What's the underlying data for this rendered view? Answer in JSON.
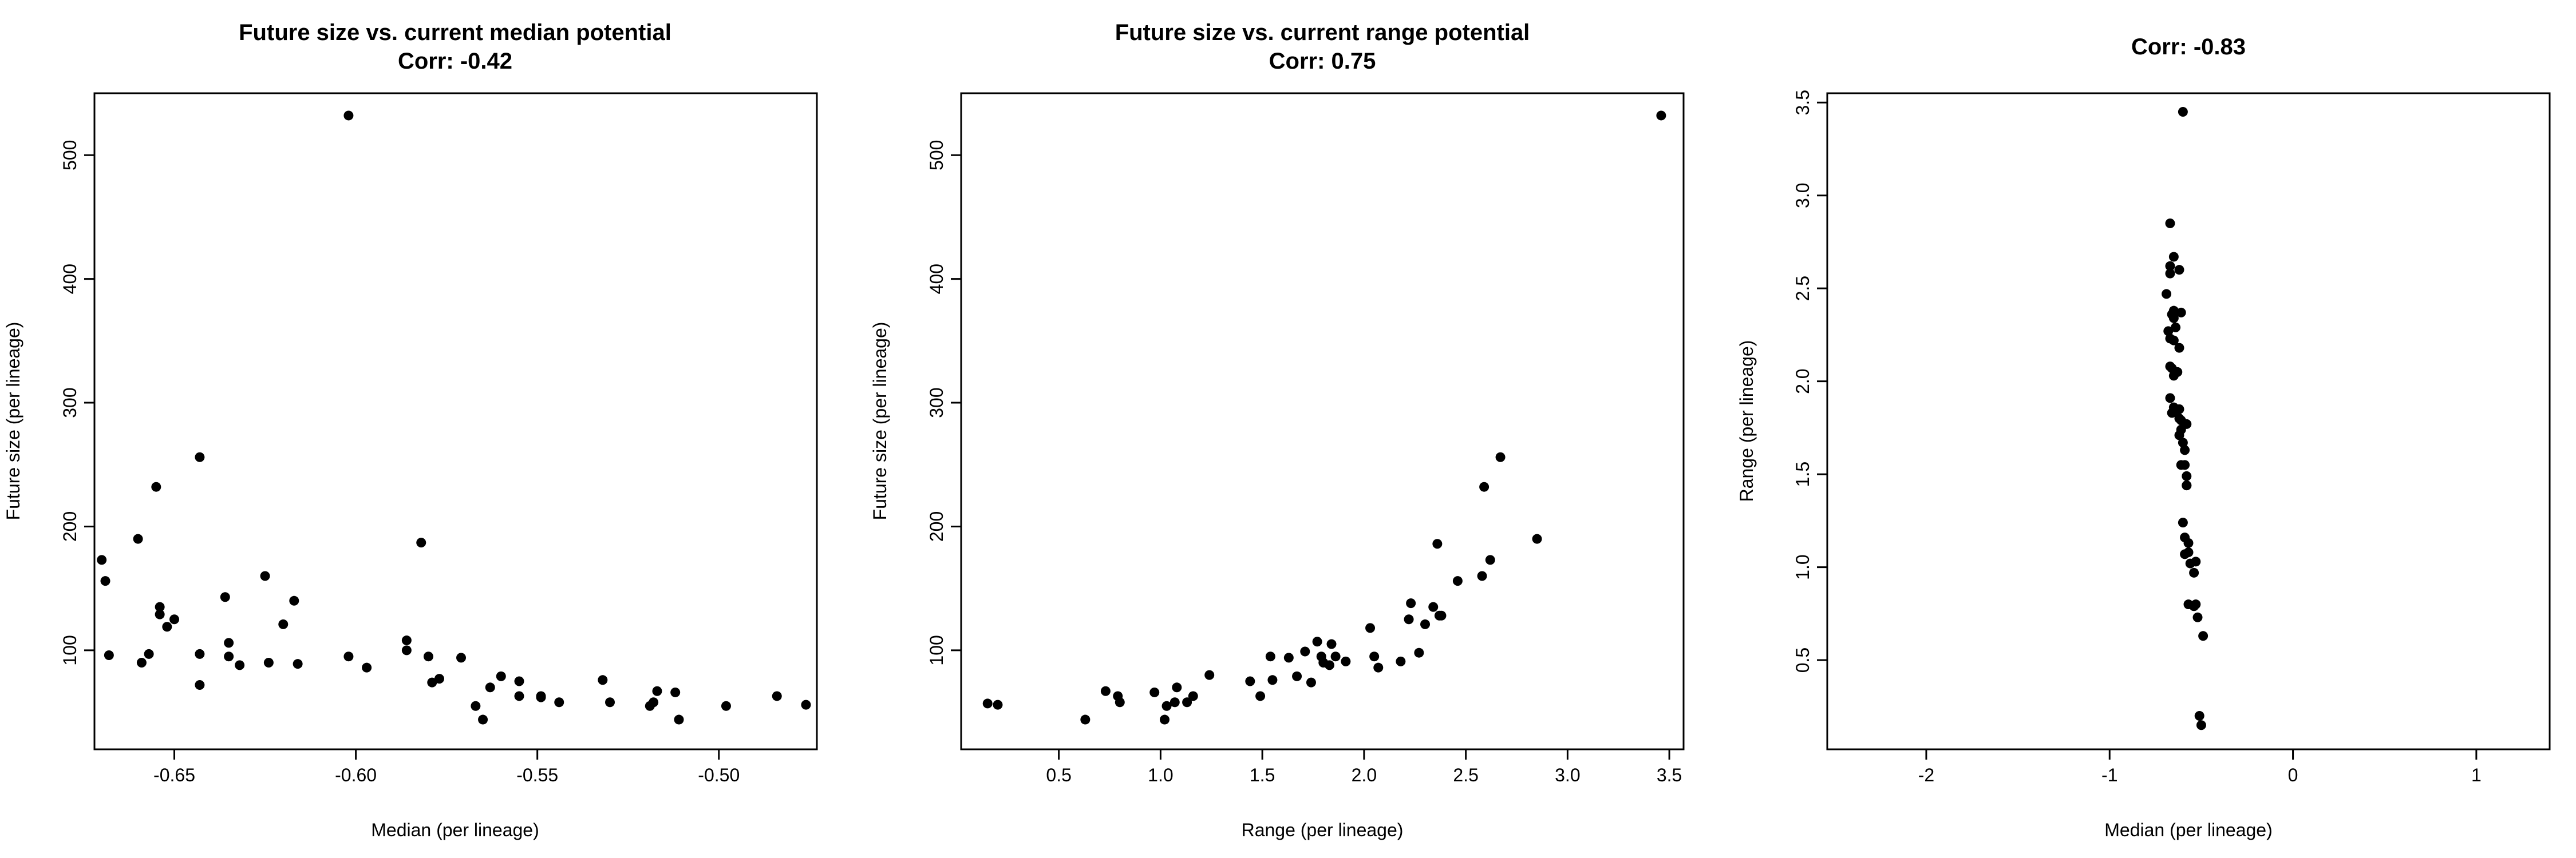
{
  "chart_data": [
    {
      "type": "scatter",
      "title": "Future size vs. current median potential",
      "subtitle": "Corr: -0.42",
      "xlabel": "Median (per lineage)",
      "ylabel": "Future size (per lineage)",
      "xlim": [
        -0.672,
        -0.473
      ],
      "ylim": [
        20,
        550
      ],
      "xticks": [
        -0.65,
        -0.6,
        -0.55,
        -0.5
      ],
      "xtick_labels": [
        "-0.65",
        "-0.60",
        "-0.55",
        "-0.50"
      ],
      "yticks": [
        100,
        200,
        300,
        400,
        500
      ],
      "ytick_labels": [
        "100",
        "200",
        "300",
        "400",
        "500"
      ],
      "grid": false,
      "x": [
        -0.67,
        -0.669,
        -0.668,
        -0.66,
        -0.659,
        -0.657,
        -0.655,
        -0.654,
        -0.654,
        -0.652,
        -0.65,
        -0.643,
        -0.643,
        -0.643,
        -0.636,
        -0.635,
        -0.635,
        -0.632,
        -0.625,
        -0.624,
        -0.62,
        -0.617,
        -0.616,
        -0.602,
        -0.602,
        -0.597,
        -0.586,
        -0.586,
        -0.582,
        -0.58,
        -0.579,
        -0.577,
        -0.571,
        -0.567,
        -0.565,
        -0.563,
        -0.56,
        -0.555,
        -0.555,
        -0.549,
        -0.549,
        -0.544,
        -0.532,
        -0.53,
        -0.519,
        -0.518,
        -0.517,
        -0.512,
        -0.511,
        -0.498,
        -0.484,
        -0.476
      ],
      "y": [
        173,
        156,
        96,
        190,
        90,
        97,
        232,
        135,
        129,
        119,
        125,
        256,
        97,
        72,
        143,
        106,
        95,
        88,
        160,
        90,
        121,
        140,
        89,
        532,
        95,
        86,
        108,
        100,
        187,
        95,
        74,
        77,
        94,
        55,
        44,
        70,
        79,
        75,
        63,
        63,
        62,
        58,
        76,
        58,
        55,
        58,
        67,
        66,
        44,
        55,
        63,
        56
      ]
    },
    {
      "type": "scatter",
      "title": "Future size vs. current range potential",
      "subtitle": "Corr: 0.75",
      "xlabel": "Range (per lineage)",
      "ylabel": "Future size (per lineage)",
      "xlim": [
        0.02,
        3.57
      ],
      "ylim": [
        20,
        550
      ],
      "xticks": [
        0.5,
        1.0,
        1.5,
        2.0,
        2.5,
        3.0,
        3.5
      ],
      "xtick_labels": [
        "0.5",
        "1.0",
        "1.5",
        "2.0",
        "2.5",
        "3.0",
        "3.5"
      ],
      "yticks": [
        100,
        200,
        300,
        400,
        500
      ],
      "ytick_labels": [
        "100",
        "200",
        "300",
        "400",
        "500"
      ],
      "grid": false,
      "x": [
        0.15,
        0.2,
        0.63,
        0.73,
        0.79,
        0.8,
        0.97,
        1.02,
        1.03,
        1.07,
        1.08,
        1.13,
        1.16,
        1.24,
        1.44,
        1.49,
        1.54,
        1.55,
        1.63,
        1.67,
        1.71,
        1.74,
        1.77,
        1.79,
        1.8,
        1.83,
        1.84,
        1.86,
        1.91,
        2.03,
        2.05,
        2.07,
        2.18,
        2.22,
        2.23,
        2.27,
        2.3,
        2.34,
        2.36,
        2.37,
        2.38,
        2.46,
        2.58,
        2.59,
        2.62,
        2.67,
        2.85,
        3.46
      ],
      "y": [
        57,
        56,
        44,
        67,
        63,
        58,
        66,
        44,
        55,
        58,
        70,
        58,
        63,
        80,
        75,
        63,
        95,
        76,
        94,
        79,
        99,
        74,
        107,
        95,
        90,
        88,
        105,
        95,
        91,
        118,
        95,
        86,
        91,
        125,
        138,
        98,
        121,
        135,
        186,
        128,
        128,
        156,
        160,
        232,
        173,
        256,
        190,
        532
      ]
    },
    {
      "type": "scatter",
      "title": "Corr: -0.83",
      "xlabel": "Median (per lineage)",
      "ylabel": "Range (per lineage)",
      "xlim": [
        -2.54,
        1.4
      ],
      "ylim": [
        0.02,
        3.55
      ],
      "xticks": [
        -2,
        -1,
        0,
        1
      ],
      "xtick_labels": [
        "-2",
        "-1",
        "0",
        "1"
      ],
      "yticks": [
        0.5,
        1.0,
        1.5,
        2.0,
        2.5,
        3.0,
        3.5
      ],
      "ytick_labels": [
        "0.5",
        "1.0",
        "1.5",
        "2.0",
        "2.5",
        "3.0",
        "3.5"
      ],
      "grid": false,
      "x": [
        -0.6,
        -0.67,
        -0.65,
        -0.67,
        -0.62,
        -0.67,
        -0.69,
        -0.65,
        -0.61,
        -0.66,
        -0.65,
        -0.64,
        -0.68,
        -0.67,
        -0.65,
        -0.62,
        -0.67,
        -0.66,
        -0.63,
        -0.65,
        -0.67,
        -0.65,
        -0.62,
        -0.65,
        -0.66,
        -0.62,
        -0.61,
        -0.58,
        -0.61,
        -0.62,
        -0.6,
        -0.59,
        -0.61,
        -0.59,
        -0.58,
        -0.58,
        -0.58,
        -0.6,
        -0.59,
        -0.57,
        -0.57,
        -0.59,
        -0.53,
        -0.56,
        -0.54,
        -0.57,
        -0.53,
        -0.54,
        -0.52,
        -0.49,
        -0.51,
        -0.5
      ],
      "y": [
        3.45,
        2.85,
        2.67,
        2.62,
        2.6,
        2.58,
        2.47,
        2.38,
        2.37,
        2.36,
        2.34,
        2.29,
        2.27,
        2.23,
        2.22,
        2.18,
        2.08,
        2.07,
        2.05,
        2.03,
        1.91,
        1.86,
        1.85,
        1.84,
        1.83,
        1.8,
        1.79,
        1.77,
        1.74,
        1.71,
        1.67,
        1.63,
        1.55,
        1.55,
        1.49,
        1.44,
        1.44,
        1.24,
        1.16,
        1.13,
        1.08,
        1.07,
        1.03,
        1.02,
        0.97,
        0.8,
        0.8,
        0.79,
        0.73,
        0.63,
        0.2,
        0.15
      ]
    }
  ]
}
